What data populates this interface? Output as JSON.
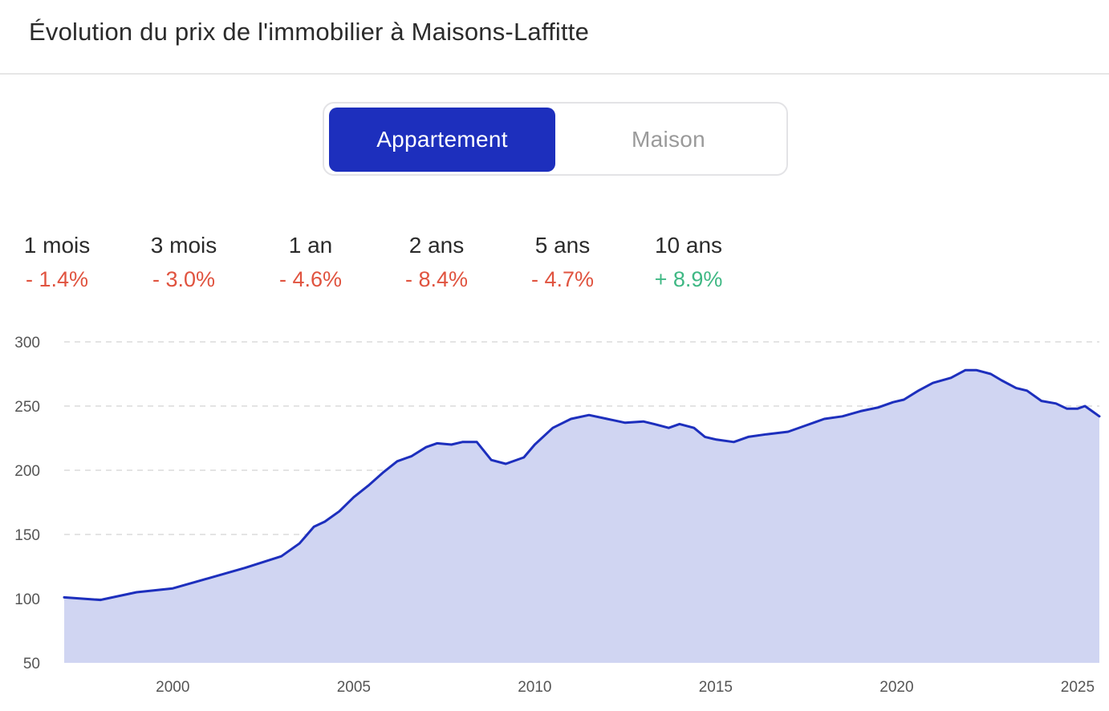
{
  "header": {
    "title": "Évolution du prix de l'immobilier à Maisons-Laffitte"
  },
  "toggle": {
    "options": [
      "Appartement",
      "Maison"
    ],
    "selected": "Appartement"
  },
  "stats": [
    {
      "period": "1 mois",
      "change": "- 1.4%",
      "trend": "down"
    },
    {
      "period": "3 mois",
      "change": "- 3.0%",
      "trend": "down"
    },
    {
      "period": "1 an",
      "change": "- 4.6%",
      "trend": "down"
    },
    {
      "period": "2 ans",
      "change": "- 8.4%",
      "trend": "down"
    },
    {
      "period": "5 ans",
      "change": "- 4.7%",
      "trend": "down"
    },
    {
      "period": "10 ans",
      "change": "+ 8.9%",
      "trend": "up"
    }
  ],
  "colors": {
    "accent": "#1d2fbd",
    "area_fill": "#d0d5f2",
    "negative": "#e0533f",
    "positive": "#3fb884",
    "grid": "#dcdcdc"
  },
  "chart_data": {
    "type": "area",
    "title": "",
    "xlabel": "",
    "ylabel": "",
    "ylim": [
      50,
      300
    ],
    "xlim": [
      1997,
      2025.6
    ],
    "yticks": [
      50,
      100,
      150,
      200,
      250,
      300
    ],
    "xticks": [
      2000,
      2005,
      2010,
      2015,
      2020,
      2025
    ],
    "grid": true,
    "series": [
      {
        "x": [
          1997.0,
          1998.0,
          1999.0,
          2000.0,
          2001.0,
          2002.0,
          2003.0,
          2003.5,
          2003.9,
          2004.2,
          2004.6,
          2005.0,
          2005.4,
          2005.8,
          2006.2,
          2006.6,
          2007.0,
          2007.3,
          2007.7,
          2008.0,
          2008.4,
          2008.8,
          2009.2,
          2009.7,
          2010.0,
          2010.5,
          2011.0,
          2011.5,
          2012.0,
          2012.5,
          2013.0,
          2013.3,
          2013.7,
          2014.0,
          2014.4,
          2014.7,
          2015.0,
          2015.5,
          2015.9,
          2016.4,
          2017.0,
          2017.5,
          2018.0,
          2018.5,
          2019.0,
          2019.5,
          2019.9,
          2020.2,
          2020.6,
          2021.0,
          2021.5,
          2021.9,
          2022.2,
          2022.6,
          2022.9,
          2023.3,
          2023.6,
          2024.0,
          2024.4,
          2024.7,
          2025.0,
          2025.2,
          2025.4,
          2025.6
        ],
        "values": [
          101,
          99,
          105,
          108,
          116,
          124,
          133,
          143,
          156,
          160,
          168,
          179,
          188,
          198,
          207,
          211,
          218,
          221,
          220,
          222,
          222,
          208,
          205,
          210,
          220,
          233,
          240,
          243,
          240,
          237,
          238,
          236,
          233,
          236,
          233,
          226,
          224,
          222,
          226,
          228,
          230,
          235,
          240,
          242,
          246,
          249,
          253,
          255,
          262,
          268,
          272,
          278,
          278,
          275,
          270,
          264,
          262,
          254,
          252,
          248,
          248,
          250,
          246,
          242
        ]
      }
    ]
  }
}
